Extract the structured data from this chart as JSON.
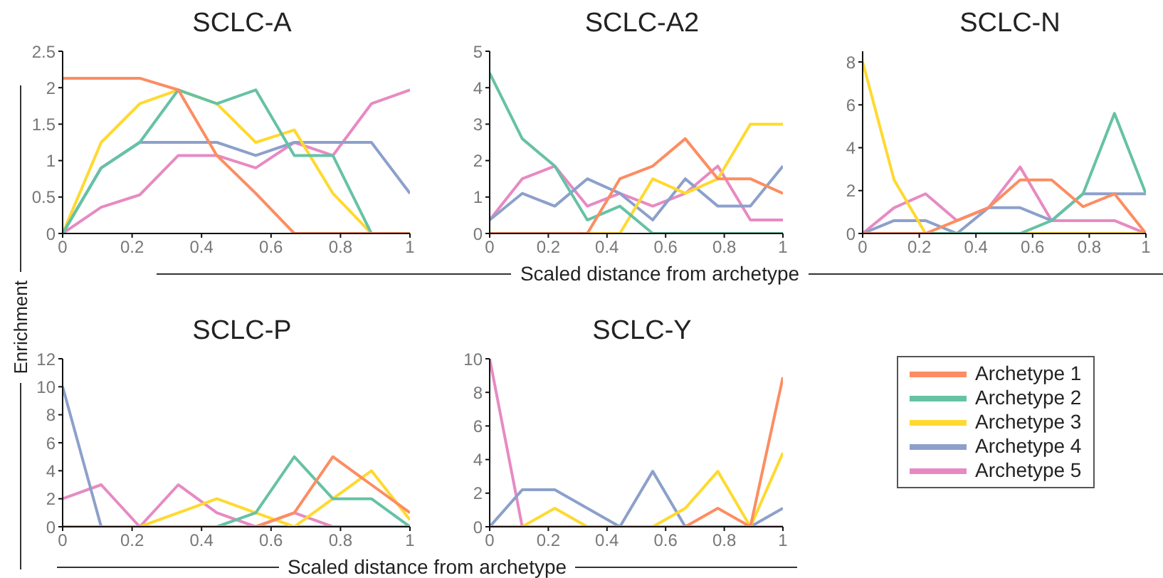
{
  "chart_data": [
    {
      "type": "line",
      "title": "SCLC-A",
      "ylabel": "Enrichment",
      "legend": "right",
      "x": [
        0,
        0.111,
        0.222,
        0.333,
        0.444,
        0.556,
        0.667,
        0.778,
        0.889,
        1
      ],
      "xlim": [
        0,
        1
      ],
      "xticks": [
        0,
        0.2,
        0.4,
        0.6,
        0.8,
        1
      ],
      "ylim": [
        0,
        2.5
      ],
      "yticks": [
        0,
        0.5,
        1,
        1.5,
        2,
        2.5
      ],
      "marker": "none",
      "series": [
        {
          "name": "Archetype 1",
          "color": "#fc8d62",
          "values": [
            2.13,
            2.13,
            2.13,
            1.97,
            1.07,
            0.55,
            0,
            0,
            0,
            0
          ]
        },
        {
          "name": "Archetype 2",
          "color": "#66c2a5",
          "values": [
            0,
            0.9,
            1.25,
            1.97,
            1.78,
            1.97,
            1.07,
            1.07,
            0,
            0
          ]
        },
        {
          "name": "Archetype 3",
          "color": "#ffd92f",
          "values": [
            0,
            1.25,
            1.78,
            1.97,
            1.78,
            1.25,
            1.42,
            0.55,
            0,
            0
          ]
        },
        {
          "name": "Archetype 4",
          "color": "#8da0cb",
          "values": [
            0,
            0.9,
            1.25,
            1.25,
            1.25,
            1.07,
            1.25,
            1.25,
            1.25,
            0.55
          ]
        },
        {
          "name": "Archetype 5",
          "color": "#e78ac3",
          "values": [
            0,
            0.36,
            0.53,
            1.07,
            1.07,
            0.9,
            1.25,
            1.07,
            1.78,
            1.97
          ]
        }
      ]
    },
    {
      "type": "line",
      "title": "SCLC-A2",
      "xlabel": "Scaled distance from archetype",
      "x": [
        0,
        0.111,
        0.222,
        0.333,
        0.444,
        0.556,
        0.667,
        0.778,
        0.889,
        1
      ],
      "xlim": [
        0,
        1
      ],
      "xticks": [
        0,
        0.2,
        0.4,
        0.6,
        0.8,
        1
      ],
      "ylim": [
        0,
        5
      ],
      "yticks": [
        0,
        1,
        2,
        3,
        4,
        5
      ],
      "marker": "none",
      "series": [
        {
          "color": "#fc8d62",
          "values": [
            0,
            0,
            0,
            0,
            1.5,
            1.85,
            2.6,
            1.5,
            1.5,
            1.1
          ]
        },
        {
          "color": "#66c2a5",
          "values": [
            4.4,
            2.6,
            1.85,
            0.37,
            0.75,
            0,
            0,
            0,
            0,
            0
          ]
        },
        {
          "color": "#ffd92f",
          "values": [
            null,
            null,
            0,
            0,
            0,
            1.5,
            1.1,
            1.5,
            3,
            3
          ]
        },
        {
          "color": "#8da0cb",
          "values": [
            0.37,
            1.1,
            0.75,
            1.5,
            1.1,
            0.37,
            1.5,
            0.75,
            0.75,
            1.85
          ]
        },
        {
          "color": "#e78ac3",
          "values": [
            0.37,
            1.5,
            1.85,
            0.75,
            1.1,
            0.75,
            1.1,
            1.85,
            0.37,
            0.37
          ]
        }
      ]
    },
    {
      "type": "line",
      "title": "SCLC-N",
      "x": [
        0,
        0.111,
        0.222,
        0.333,
        0.444,
        0.556,
        0.667,
        0.778,
        0.889,
        1
      ],
      "xlim": [
        0,
        1
      ],
      "xticks": [
        0,
        0.2,
        0.4,
        0.6,
        0.8,
        1
      ],
      "ylim": [
        0,
        8.5
      ],
      "yticks": [
        0,
        2,
        4,
        6,
        8
      ],
      "marker": "none",
      "series": [
        {
          "color": "#fc8d62",
          "values": [
            0,
            0,
            0,
            0.6,
            1.2,
            2.5,
            2.5,
            1.25,
            1.85,
            0
          ]
        },
        {
          "color": "#66c2a5",
          "values": [
            0,
            0,
            0,
            0,
            0,
            0,
            0.6,
            1.85,
            5.6,
            1.85
          ]
        },
        {
          "color": "#ffd92f",
          "values": [
            8,
            2.5,
            0,
            0,
            0,
            0,
            0,
            0,
            0,
            0
          ]
        },
        {
          "color": "#8da0cb",
          "values": [
            0,
            0.6,
            0.6,
            0,
            1.2,
            1.2,
            0.6,
            1.85,
            1.85,
            1.85
          ]
        },
        {
          "color": "#e78ac3",
          "values": [
            0,
            1.2,
            1.85,
            0.6,
            1.2,
            3.1,
            0.6,
            0.6,
            0.6,
            0
          ]
        }
      ]
    },
    {
      "type": "line",
      "title": "SCLC-P",
      "xlabel": "Scaled distance from archetype",
      "x": [
        0,
        0.111,
        0.222,
        0.333,
        0.444,
        0.556,
        0.667,
        0.778,
        0.889,
        1
      ],
      "xlim": [
        0,
        1
      ],
      "xticks": [
        0,
        0.2,
        0.4,
        0.6,
        0.8,
        1
      ],
      "ylim": [
        0,
        12
      ],
      "yticks": [
        0,
        2,
        4,
        6,
        8,
        10,
        12
      ],
      "marker": "none",
      "series": [
        {
          "color": "#fc8d62",
          "values": [
            0,
            0,
            0,
            0,
            0,
            0,
            1,
            5,
            3,
            1
          ]
        },
        {
          "color": "#66c2a5",
          "values": [
            0,
            0,
            0,
            0,
            0,
            1,
            5,
            2,
            2,
            0
          ]
        },
        {
          "color": "#ffd92f",
          "values": [
            0,
            0,
            0,
            1,
            2,
            1,
            0,
            2,
            4,
            0.5
          ]
        },
        {
          "color": "#8da0cb",
          "values": [
            10,
            0,
            0,
            0,
            0,
            0,
            0,
            0,
            0,
            0
          ]
        },
        {
          "color": "#e78ac3",
          "values": [
            2,
            3,
            0,
            3,
            1,
            0,
            1,
            0,
            0,
            0
          ]
        }
      ]
    },
    {
      "type": "line",
      "title": "SCLC-Y",
      "x": [
        0,
        0.111,
        0.222,
        0.333,
        0.444,
        0.556,
        0.667,
        0.778,
        0.889,
        1
      ],
      "xlim": [
        0,
        1
      ],
      "xticks": [
        0,
        0.2,
        0.4,
        0.6,
        0.8,
        1
      ],
      "ylim": [
        0,
        10
      ],
      "yticks": [
        0,
        2,
        4,
        6,
        8,
        10
      ],
      "marker": "none",
      "series": [
        {
          "color": "#fc8d62",
          "values": [
            0,
            0,
            0,
            0,
            0,
            0,
            0,
            1.1,
            0,
            8.9
          ]
        },
        {
          "color": "#66c2a5",
          "values": [
            null,
            null,
            null,
            null,
            null,
            null,
            null,
            null,
            null,
            null
          ]
        },
        {
          "color": "#ffd92f",
          "values": [
            0,
            0,
            1.1,
            0,
            0,
            0,
            1.1,
            3.3,
            0,
            4.4
          ]
        },
        {
          "color": "#8da0cb",
          "values": [
            0,
            2.2,
            2.2,
            1.1,
            0,
            3.3,
            0,
            0,
            0,
            1.1
          ]
        },
        {
          "color": "#e78ac3",
          "values": [
            10,
            0,
            null,
            null,
            null,
            null,
            null,
            null,
            0,
            0
          ]
        }
      ]
    }
  ]
}
